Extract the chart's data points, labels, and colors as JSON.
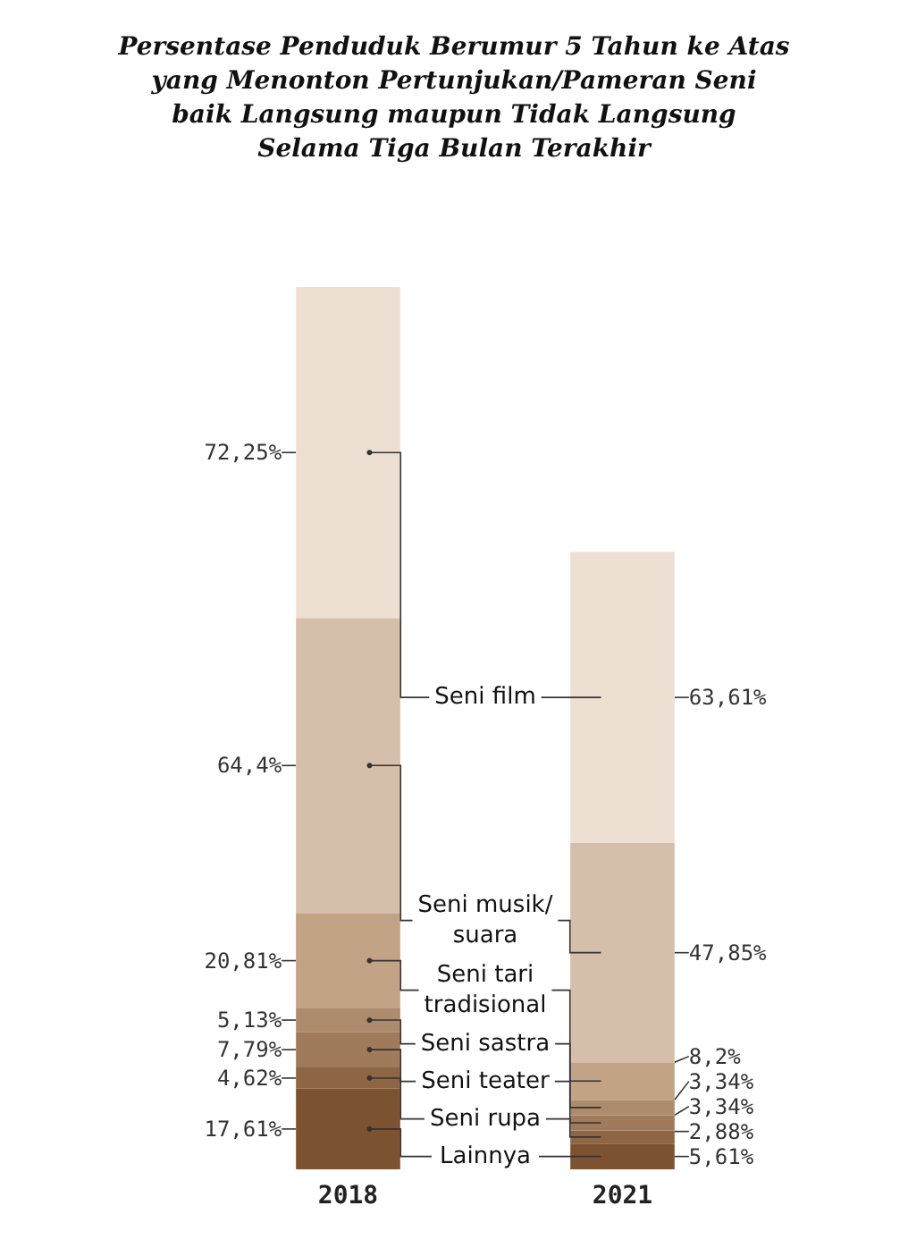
{
  "chart_data": {
    "type": "bar",
    "title": "Persentase Penduduk Berumur 5 Tahun ke Atas\nyang Menonton Pertunjukan/Pameran Seni\nbaik Langsung maupun Tidak Langsung\nSelama Tiga Bulan Terakhir",
    "categories": [
      "2018",
      "2021"
    ],
    "stacked": true,
    "series": [
      {
        "name": "Lainnya",
        "color": "#7d5230",
        "values": [
          17.61,
          5.61
        ],
        "value_labels": [
          "17,61%",
          "5,61%"
        ]
      },
      {
        "name": "Seni rupa",
        "color": "#8e6644",
        "values": [
          4.62,
          2.88
        ],
        "value_labels": [
          "4,62%",
          "2,88%"
        ]
      },
      {
        "name": "Seni teater",
        "color": "#a07b5b",
        "values": [
          7.79,
          3.34
        ],
        "value_labels": [
          "7,79%",
          "3,34%"
        ]
      },
      {
        "name": "Seni sastra",
        "color": "#ad8b6d",
        "values": [
          5.13,
          3.34
        ],
        "value_labels": [
          "5,13%",
          "3,34%"
        ]
      },
      {
        "name": "Seni tari\ntradisional",
        "color": "#c2a386",
        "values": [
          20.81,
          8.2
        ],
        "value_labels": [
          "20,81%",
          "8,2%"
        ]
      },
      {
        "name": "Seni musik/\nsuara",
        "color": "#d6bfaa",
        "values": [
          64.4,
          47.85
        ],
        "value_labels": [
          "64,4%",
          "47,85%"
        ]
      },
      {
        "name": "Seni film",
        "color": "#eedfd3",
        "values": [
          72.25,
          63.61
        ],
        "value_labels": [
          "72,25%",
          "63,61%"
        ]
      }
    ]
  }
}
